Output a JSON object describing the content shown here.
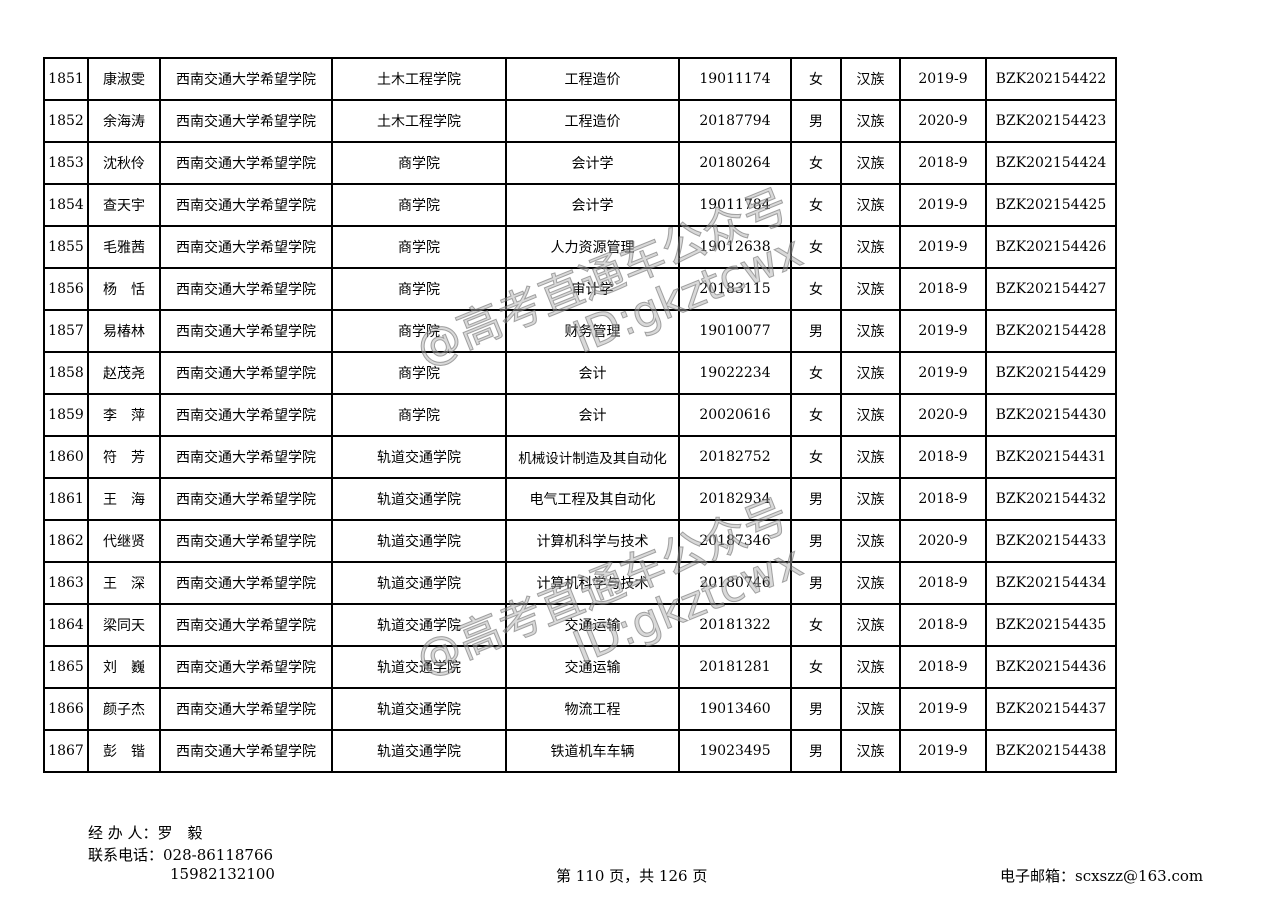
{
  "rows": [
    [
      "1851",
      "康淑雯",
      "西南交通大学希望学院",
      "土木工程学院",
      "工程造价",
      "19011174",
      "女",
      "汉族",
      "2019-9",
      "BZK202154422"
    ],
    [
      "1852",
      "余海涛",
      "西南交通大学希望学院",
      "土木工程学院",
      "工程造价",
      "20187794",
      "男",
      "汉族",
      "2020-9",
      "BZK202154423"
    ],
    [
      "1853",
      "沈秋伶",
      "西南交通大学希望学院",
      "商学院",
      "会计学",
      "20180264",
      "女",
      "汉族",
      "2018-9",
      "BZK202154424"
    ],
    [
      "1854",
      "查天宇",
      "西南交通大学希望学院",
      "商学院",
      "会计学",
      "19011784",
      "女",
      "汉族",
      "2019-9",
      "BZK202154425"
    ],
    [
      "1855",
      "毛雅茜",
      "西南交通大学希望学院",
      "商学院",
      "人力资源管理",
      "19012638",
      "女",
      "汉族",
      "2019-9",
      "BZK202154426"
    ],
    [
      "1856",
      "杨　恬",
      "西南交通大学希望学院",
      "商学院",
      "审计学",
      "20183115",
      "女",
      "汉族",
      "2018-9",
      "BZK202154427"
    ],
    [
      "1857",
      "易椿林",
      "西南交通大学希望学院",
      "商学院",
      "财务管理",
      "19010077",
      "男",
      "汉族",
      "2019-9",
      "BZK202154428"
    ],
    [
      "1858",
      "赵茂尧",
      "西南交通大学希望学院",
      "商学院",
      "会计",
      "19022234",
      "女",
      "汉族",
      "2019-9",
      "BZK202154429"
    ],
    [
      "1859",
      "李　萍",
      "西南交通大学希望学院",
      "商学院",
      "会计",
      "20020616",
      "女",
      "汉族",
      "2020-9",
      "BZK202154430"
    ],
    [
      "1860",
      "符　芳",
      "西南交通大学希望学院",
      "轨道交通学院",
      "机械设计制造及其自动化",
      "20182752",
      "女",
      "汉族",
      "2018-9",
      "BZK202154431"
    ],
    [
      "1861",
      "王　海",
      "西南交通大学希望学院",
      "轨道交通学院",
      "电气工程及其自动化",
      "20182934",
      "男",
      "汉族",
      "2018-9",
      "BZK202154432"
    ],
    [
      "1862",
      "代继贤",
      "西南交通大学希望学院",
      "轨道交通学院",
      "计算机科学与技术",
      "20187346",
      "男",
      "汉族",
      "2020-9",
      "BZK202154433"
    ],
    [
      "1863",
      "王　深",
      "西南交通大学希望学院",
      "轨道交通学院",
      "计算机科学与技术",
      "20180746",
      "男",
      "汉族",
      "2018-9",
      "BZK202154434"
    ],
    [
      "1864",
      "梁同天",
      "西南交通大学希望学院",
      "轨道交通学院",
      "交通运输",
      "20181322",
      "女",
      "汉族",
      "2018-9",
      "BZK202154435"
    ],
    [
      "1865",
      "刘　巍",
      "西南交通大学希望学院",
      "轨道交通学院",
      "交通运输",
      "20181281",
      "女",
      "汉族",
      "2018-9",
      "BZK202154436"
    ],
    [
      "1866",
      "颜子杰",
      "西南交通大学希望学院",
      "轨道交通学院",
      "物流工程",
      "19013460",
      "男",
      "汉族",
      "2019-9",
      "BZK202154437"
    ],
    [
      "1867",
      "彭　锴",
      "西南交通大学希望学院",
      "轨道交通学院",
      "铁道机车车辆",
      "19023495",
      "男",
      "汉族",
      "2019-9",
      "BZK202154438"
    ]
  ],
  "footer": {
    "handler": "经 办 人：罗　毅",
    "phone1": "联系电话：028-86118766",
    "phone2": "15982132100",
    "page": "第 110 页，共 126 页",
    "email": "电子邮箱：scxszz@163.com"
  },
  "watermark": {
    "line1": "@高考直通车公众号",
    "line2": "ID:gkztcwx"
  }
}
